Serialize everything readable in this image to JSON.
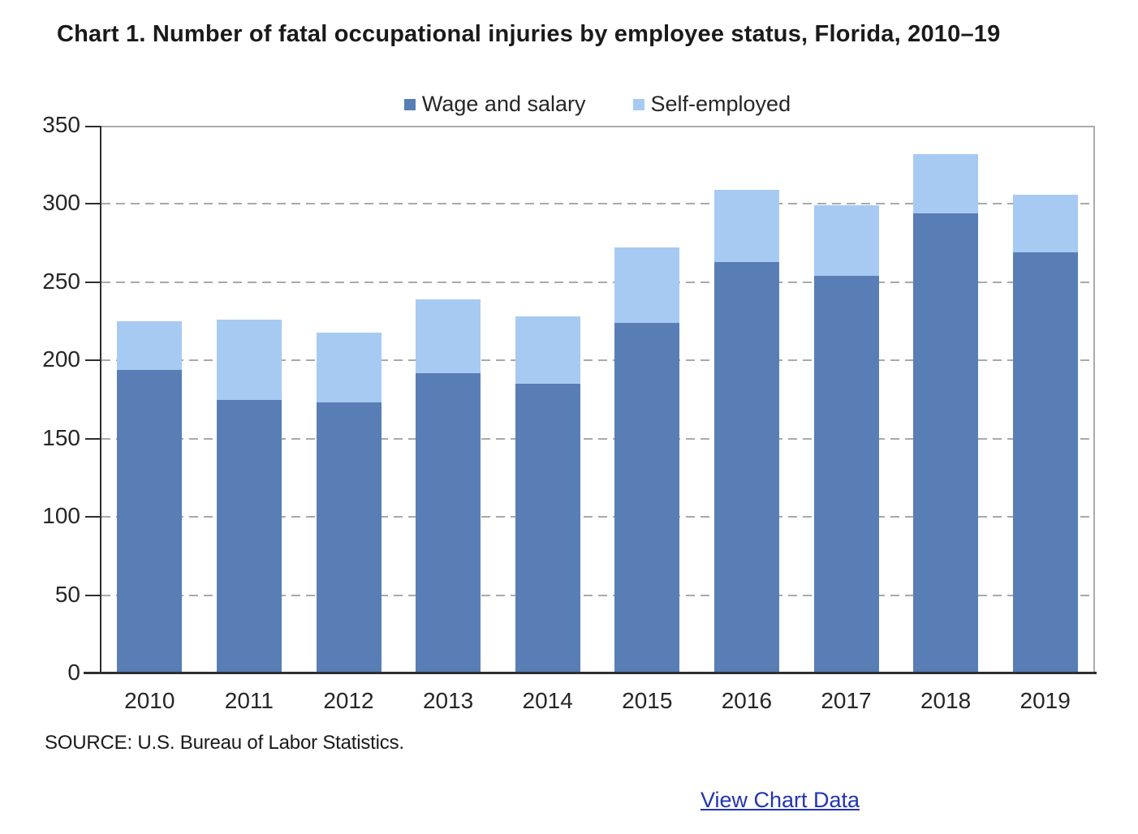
{
  "page": {
    "title": "Chart 1. Number of fatal occupational injuries by employee status, Florida, 2010–19",
    "source": "SOURCE: U.S. Bureau of Labor Statistics.",
    "link_label": "View Chart Data"
  },
  "colors": {
    "wage_salary": "#587eb5",
    "self_employed": "#a7caf2",
    "gridline": "#a9a9a9",
    "axis": "#2e2e2e",
    "plot_border": "#ababab",
    "link": "#2135b1",
    "text": "#262626"
  },
  "chart_data": {
    "type": "bar",
    "stacked": true,
    "title": "Chart 1. Number of fatal occupational injuries by employee status, Florida, 2010–19",
    "xlabel": "",
    "ylabel": "",
    "categories": [
      "2010",
      "2011",
      "2012",
      "2013",
      "2014",
      "2015",
      "2016",
      "2017",
      "2018",
      "2019"
    ],
    "series": [
      {
        "name": "Wage and salary",
        "color": "#587eb5",
        "values": [
          194,
          175,
          173,
          192,
          185,
          224,
          263,
          254,
          294,
          269
        ]
      },
      {
        "name": "Self-employed",
        "color": "#a7caf2",
        "values": [
          31,
          51,
          45,
          47,
          43,
          48,
          46,
          45,
          38,
          37
        ]
      }
    ],
    "totals": [
      225,
      226,
      218,
      239,
      228,
      272,
      309,
      299,
      332,
      306
    ],
    "ylim": [
      0,
      350
    ],
    "yticks": [
      0,
      50,
      100,
      150,
      200,
      250,
      300,
      350
    ],
    "grid": "horizontal-dashed",
    "legend_position": "top-center"
  }
}
